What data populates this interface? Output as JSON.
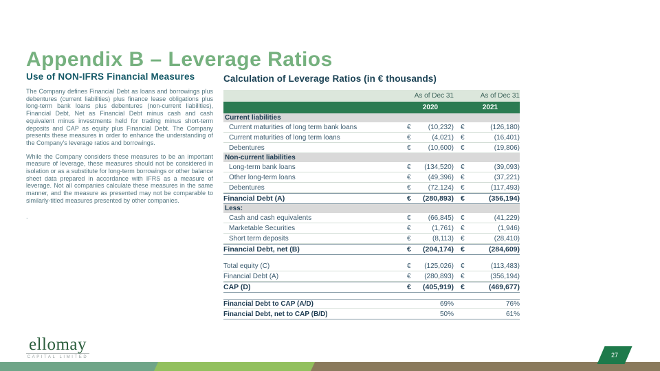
{
  "slide": {
    "title": "Appendix B – Leverage Ratios",
    "page_number": "27"
  },
  "left_panel": {
    "heading": "Use of NON-IFRS Financial Measures",
    "paragraph1": "The Company defines Financial Debt as loans and borrowings plus debentures (current liabilities) plus finance lease obligations plus long-term bank loans plus debentures (non-current liabilities), Financial Debt, Net as Financial Debt minus cash and cash equivalent minus investments held for trading minus short-term deposits and CAP as equity plus Financial Debt. The Company presents these measures in order to enhance the understanding of the Company's leverage ratios and borrowings.",
    "paragraph2": "While the Company considers these measures to be an important measure of leverage, these measures should not be considered in isolation or as a substitute for long-term borrowings or other balance sheet data prepared in accordance with IFRS as a measure of leverage. Not all companies calculate these measures in the same manner, and the measure as presented may not be comparable to similarly-titled measures presented by other companies.",
    "footnote": "."
  },
  "table_section": {
    "title": "Calculation of Leverage Ratios (in € thousands)",
    "period_label": "As of Dec 31",
    "years": [
      "2020",
      "2021"
    ],
    "currency_symbol": "€",
    "rows": [
      {
        "type": "section",
        "label": "Current liabilities"
      },
      {
        "type": "data",
        "label": "Current maturities of long term bank loans",
        "v2020": "(10,232)",
        "v2021": "(126,180)"
      },
      {
        "type": "data",
        "label": "Current maturities of long term loans",
        "v2020": "(4,021)",
        "v2021": "(16,401)"
      },
      {
        "type": "data",
        "label": "Debentures",
        "v2020": "(10,600)",
        "v2021": "(19,806)"
      },
      {
        "type": "section",
        "label": "Non-current liabilities"
      },
      {
        "type": "data",
        "label": "Long-term bank loans",
        "v2020": "(134,520)",
        "v2021": "(39,093)"
      },
      {
        "type": "data",
        "label": "Other long-term loans",
        "v2020": "(49,396)",
        "v2021": "(37,221)"
      },
      {
        "type": "data",
        "label": "Debentures",
        "v2020": "(72,124)",
        "v2021": "(117,493)"
      },
      {
        "type": "total",
        "label": "Financial Debt (A)",
        "v2020": "(280,893)",
        "v2021": "(356,194)"
      },
      {
        "type": "section",
        "label": "Less:"
      },
      {
        "type": "data",
        "label": "Cash and cash equivalents",
        "v2020": "(66,845)",
        "v2021": "(41,229)"
      },
      {
        "type": "data",
        "label": "Marketable Securities",
        "v2020": "(1,761)",
        "v2021": "(1,946)"
      },
      {
        "type": "data",
        "label": "Short term deposits",
        "v2020": "(8,113)",
        "v2021": "(28,410)"
      },
      {
        "type": "total",
        "label": "Financial Debt, net (B)",
        "v2020": "(204,174)",
        "v2021": "(284,609)"
      },
      {
        "type": "spacer"
      },
      {
        "type": "plain",
        "label": "Total equity (C)",
        "v2020": "(125,026)",
        "v2021": "(113,483)"
      },
      {
        "type": "plain",
        "label": "Financial Debt (A)",
        "v2020": "(280,893)",
        "v2021": "(356,194)"
      },
      {
        "type": "total",
        "label": "CAP (D)",
        "v2020": "(405,919)",
        "v2021": "(469,677)"
      },
      {
        "type": "spacer"
      },
      {
        "type": "ratio",
        "label": "Financial Debt to CAP (A/D)",
        "v2020": "69%",
        "v2021": "76%"
      },
      {
        "type": "ratio",
        "label": "Financial Debt, net to CAP (B/D)",
        "v2020": "50%",
        "v2021": "61%"
      }
    ]
  },
  "footer": {
    "logo_text": "ellomay",
    "logo_subtext": "CAPITAL LIMITED"
  },
  "colors": {
    "title_green": "#76b17f",
    "heading_teal": "#155a68",
    "table_header_green": "#2b7b52",
    "bar_sage": "#6fa588",
    "bar_light_green": "#92c05e",
    "bar_brown": "#8a7a5c",
    "page_tab_green": "#1e7a4b",
    "logo_green": "#2a5d3c"
  }
}
